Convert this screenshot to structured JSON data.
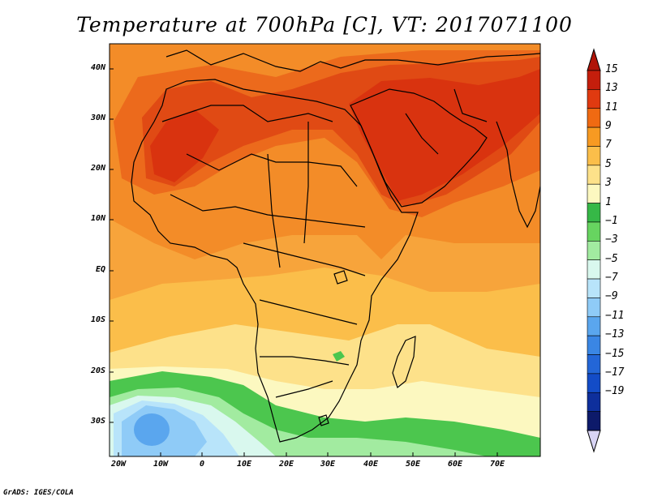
{
  "title": "Temperature at 700hPa [C], VT: 2017071100",
  "credit": "GrADS: IGES/COLA",
  "lat_labels": [
    "40N",
    "30N",
    "20N",
    "10N",
    "EQ",
    "10S",
    "20S",
    "30S"
  ],
  "lon_labels": [
    "20W",
    "10W",
    "0",
    "10E",
    "20E",
    "30E",
    "40E",
    "50E",
    "60E",
    "70E"
  ],
  "colorbar": {
    "labels": [
      "15",
      "13",
      "11",
      "9",
      "7",
      "5",
      "3",
      "1",
      "−1",
      "−3",
      "−5",
      "−7",
      "−9",
      "−11",
      "−13",
      "−15",
      "−17",
      "−19"
    ],
    "colors": [
      "#c41e0c",
      "#e03a10",
      "#f06a12",
      "#f79a22",
      "#fbbe4a",
      "#fde18a",
      "#fcf8c0",
      "#36b847",
      "#67d460",
      "#a2eba0",
      "#d9f8ee",
      "#b8e4fa",
      "#8fcbf7",
      "#5aa6ee",
      "#3a86e4",
      "#2366d7",
      "#134cc7",
      "#0e2f9c",
      "#0d1a6a"
    ],
    "top_arrow_color": "#b01408",
    "bottom_arrow_color": "#d8d4f4"
  },
  "fill_colors": {
    "ocean_base": "#f7a43b",
    "warm": "#f38c28",
    "hot": "#ec6a1c",
    "very_hot": "#e04a14",
    "extreme": "#d9330f",
    "mild": "#fbbe4a",
    "cool": "#fde18a",
    "cooler": "#fcf8c0",
    "green": "#4cc64e",
    "light_green": "#a2eba0",
    "pale": "#d9f8ee",
    "light_blue": "#b8e4fa",
    "blue": "#8fcbf7",
    "mid_blue": "#5aa6ee"
  }
}
